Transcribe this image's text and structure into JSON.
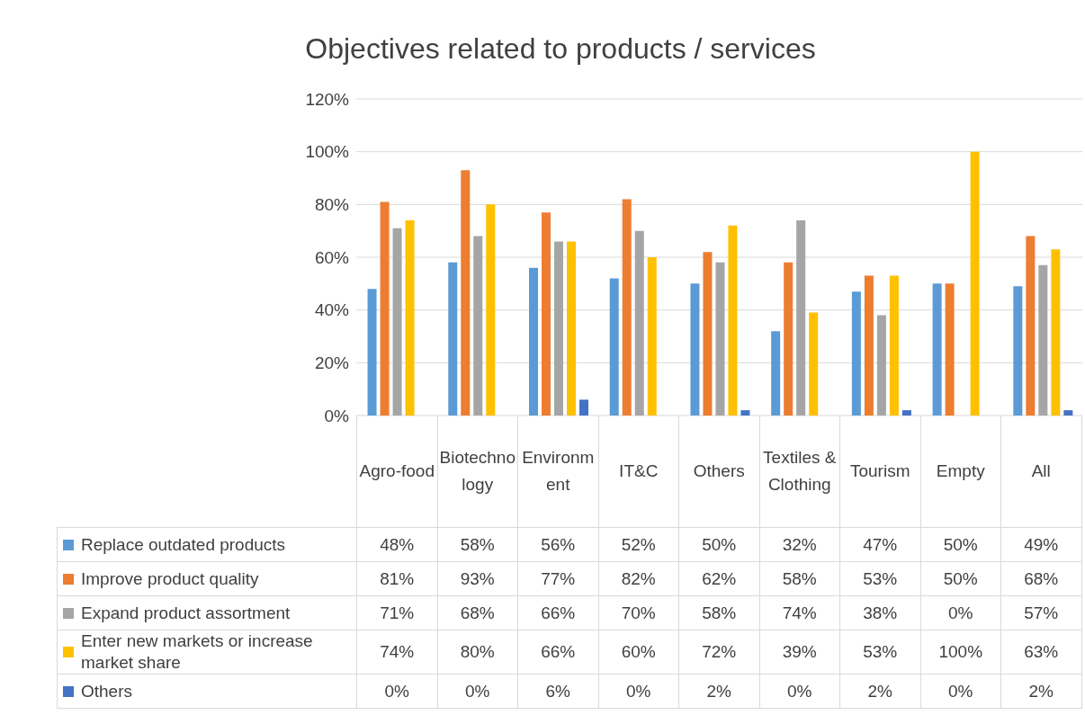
{
  "chart_data": {
    "type": "bar",
    "title": "Objectives related to products / services",
    "categories": [
      "Agro-food",
      "Biotechnology",
      "Environment",
      "IT&C",
      "Others",
      "Textiles & Clothing",
      "Tourism",
      "Empty",
      "All"
    ],
    "series": [
      {
        "name": "Replace outdated products",
        "color": "#5b9bd5",
        "values": [
          48,
          58,
          56,
          52,
          50,
          32,
          47,
          50,
          49
        ],
        "value_labels": [
          "48%",
          "58%",
          "56%",
          "52%",
          "50%",
          "32%",
          "47%",
          "50%",
          "49%"
        ]
      },
      {
        "name": "Improve product quality",
        "color": "#ed7d31",
        "values": [
          81,
          93,
          77,
          82,
          62,
          58,
          53,
          50,
          68
        ],
        "value_labels": [
          "81%",
          "93%",
          "77%",
          "82%",
          "62%",
          "58%",
          "53%",
          "50%",
          "68%"
        ]
      },
      {
        "name": "Expand product assortment",
        "color": "#a5a5a5",
        "values": [
          71,
          68,
          66,
          70,
          58,
          74,
          38,
          0,
          57
        ],
        "value_labels": [
          "71%",
          "68%",
          "66%",
          "70%",
          "58%",
          "74%",
          "38%",
          "0%",
          "57%"
        ]
      },
      {
        "name": "Enter new markets or increase market share",
        "color": "#ffc000",
        "values": [
          74,
          80,
          66,
          60,
          72,
          39,
          53,
          100,
          63
        ],
        "value_labels": [
          "74%",
          "80%",
          "66%",
          "60%",
          "72%",
          "39%",
          "53%",
          "100%",
          "63%"
        ]
      },
      {
        "name": "Others",
        "color": "#4472c4",
        "values": [
          0,
          0,
          6,
          0,
          2,
          0,
          2,
          0,
          2
        ],
        "value_labels": [
          "0%",
          "0%",
          "6%",
          "0%",
          "2%",
          "0%",
          "2%",
          "0%",
          "2%"
        ]
      }
    ],
    "ylim": [
      0,
      120
    ],
    "yticks": [
      {
        "value": 0,
        "label": "0%"
      },
      {
        "value": 20,
        "label": "20%"
      },
      {
        "value": 40,
        "label": "40%"
      },
      {
        "value": 60,
        "label": "60%"
      },
      {
        "value": 80,
        "label": "80%"
      },
      {
        "value": 100,
        "label": "100%"
      },
      {
        "value": 120,
        "label": "120%"
      }
    ],
    "grid": "y",
    "legend": "bottom"
  }
}
